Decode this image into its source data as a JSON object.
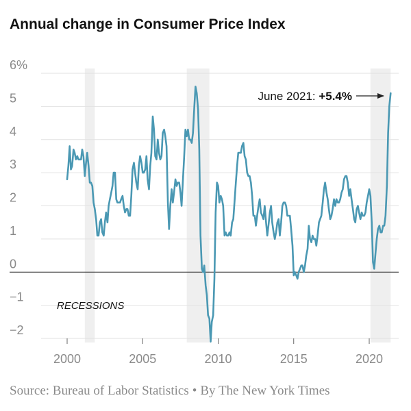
{
  "chart_data": {
    "type": "line",
    "title": "Annual change in Consumer Price Index",
    "source": "Source: Bureau of Labor Statistics",
    "byline": "By The New York Times",
    "separator": "•",
    "colors": {
      "line": "#4a98b3",
      "recession": "#efefef",
      "grid": "#e2e2e2",
      "zero_line": "#222222",
      "tick_text": "#8a8a8a"
    },
    "xlim": [
      1998.2,
      2022.0
    ],
    "ylim": [
      -2.2,
      6.2
    ],
    "x_ticks": [
      {
        "value": 2000,
        "label": "2000"
      },
      {
        "value": 2005,
        "label": "2005"
      },
      {
        "value": 2010,
        "label": "2010"
      },
      {
        "value": 2015,
        "label": "2015"
      },
      {
        "value": 2020,
        "label": "2020"
      }
    ],
    "y_ticks": [
      {
        "value": 6,
        "label": "6%"
      },
      {
        "value": 5,
        "label": "5"
      },
      {
        "value": 4,
        "label": "4"
      },
      {
        "value": 3,
        "label": "3"
      },
      {
        "value": 2,
        "label": "2"
      },
      {
        "value": 1,
        "label": "1"
      },
      {
        "value": 0,
        "label": "0"
      },
      {
        "value": -1,
        "label": "−1"
      },
      {
        "value": -2,
        "label": "−2"
      }
    ],
    "recessions": [
      {
        "start": 2001.17,
        "end": 2001.83
      },
      {
        "start": 2007.92,
        "end": 2009.42
      },
      {
        "start": 2020.08,
        "end": 2021.42
      }
    ],
    "recessions_label": "RECESSIONS",
    "annotation": {
      "text": "June 2021: ",
      "value_text": "+5.4%",
      "x": 2021.42,
      "y": 5.4
    },
    "series": [
      {
        "x": [
          2000.0,
          2000.08,
          2000.17,
          2000.25,
          2000.33,
          2000.42,
          2000.5,
          2000.58,
          2000.67,
          2000.75,
          2000.83,
          2000.92,
          2001.0,
          2001.08,
          2001.17,
          2001.25,
          2001.33,
          2001.42,
          2001.5,
          2001.58,
          2001.67,
          2001.75,
          2001.83,
          2001.92,
          2002.0,
          2002.08,
          2002.17,
          2002.25,
          2002.33,
          2002.42,
          2002.5,
          2002.58,
          2002.67,
          2002.75,
          2002.83,
          2002.92,
          2003.0,
          2003.08,
          2003.17,
          2003.25,
          2003.33,
          2003.42,
          2003.5,
          2003.58,
          2003.67,
          2003.75,
          2003.83,
          2003.92,
          2004.0,
          2004.08,
          2004.17,
          2004.25,
          2004.33,
          2004.42,
          2004.5,
          2004.58,
          2004.67,
          2004.75,
          2004.83,
          2004.92,
          2005.0,
          2005.08,
          2005.17,
          2005.25,
          2005.33,
          2005.42,
          2005.5,
          2005.58,
          2005.67,
          2005.75,
          2005.83,
          2005.92,
          2006.0,
          2006.08,
          2006.17,
          2006.25,
          2006.33,
          2006.42,
          2006.5,
          2006.58,
          2006.67,
          2006.75,
          2006.83,
          2006.92,
          2007.0,
          2007.08,
          2007.17,
          2007.25,
          2007.33,
          2007.42,
          2007.5,
          2007.58,
          2007.67,
          2007.75,
          2007.83,
          2007.92,
          2008.0,
          2008.08,
          2008.17,
          2008.25,
          2008.33,
          2008.42,
          2008.5,
          2008.58,
          2008.67,
          2008.75,
          2008.83,
          2008.92,
          2009.0,
          2009.08,
          2009.17,
          2009.25,
          2009.33,
          2009.42,
          2009.5,
          2009.58,
          2009.67,
          2009.75,
          2009.83,
          2009.92,
          2010.0,
          2010.08,
          2010.17,
          2010.25,
          2010.33,
          2010.42,
          2010.5,
          2010.58,
          2010.67,
          2010.75,
          2010.83,
          2010.92,
          2011.0,
          2011.08,
          2011.17,
          2011.25,
          2011.33,
          2011.42,
          2011.5,
          2011.58,
          2011.67,
          2011.75,
          2011.83,
          2011.92,
          2012.0,
          2012.08,
          2012.17,
          2012.25,
          2012.33,
          2012.42,
          2012.5,
          2012.58,
          2012.67,
          2012.75,
          2012.83,
          2012.92,
          2013.0,
          2013.08,
          2013.17,
          2013.25,
          2013.33,
          2013.42,
          2013.5,
          2013.58,
          2013.67,
          2013.75,
          2013.83,
          2013.92,
          2014.0,
          2014.08,
          2014.17,
          2014.25,
          2014.33,
          2014.42,
          2014.5,
          2014.58,
          2014.67,
          2014.75,
          2014.83,
          2014.92,
          2015.0,
          2015.08,
          2015.17,
          2015.25,
          2015.33,
          2015.42,
          2015.5,
          2015.58,
          2015.67,
          2015.75,
          2015.83,
          2015.92,
          2016.0,
          2016.08,
          2016.17,
          2016.25,
          2016.33,
          2016.42,
          2016.5,
          2016.58,
          2016.67,
          2016.75,
          2016.83,
          2016.92,
          2017.0,
          2017.08,
          2017.17,
          2017.25,
          2017.33,
          2017.42,
          2017.5,
          2017.58,
          2017.67,
          2017.75,
          2017.83,
          2017.92,
          2018.0,
          2018.08,
          2018.17,
          2018.25,
          2018.33,
          2018.42,
          2018.5,
          2018.58,
          2018.67,
          2018.75,
          2018.83,
          2018.92,
          2019.0,
          2019.08,
          2019.17,
          2019.25,
          2019.33,
          2019.42,
          2019.5,
          2019.58,
          2019.67,
          2019.75,
          2019.83,
          2019.92,
          2020.0,
          2020.08,
          2020.17,
          2020.25,
          2020.33,
          2020.42,
          2020.5,
          2020.58,
          2020.67,
          2020.75,
          2020.83,
          2020.92,
          2021.0,
          2021.08,
          2021.17,
          2021.25,
          2021.33,
          2021.42
        ],
        "y": [
          2.8,
          3.2,
          3.8,
          3.1,
          3.2,
          3.7,
          3.6,
          3.4,
          3.5,
          3.4,
          3.4,
          3.4,
          3.7,
          3.5,
          2.9,
          3.3,
          3.6,
          3.2,
          2.7,
          2.7,
          2.6,
          2.1,
          1.9,
          1.6,
          1.1,
          1.1,
          1.5,
          1.6,
          1.2,
          1.1,
          1.5,
          1.8,
          1.5,
          2.0,
          2.2,
          2.4,
          2.6,
          3.0,
          3.0,
          2.2,
          2.1,
          2.1,
          2.1,
          2.2,
          2.3,
          2.0,
          1.8,
          1.9,
          1.9,
          1.7,
          1.7,
          2.3,
          3.1,
          3.3,
          3.0,
          2.7,
          2.5,
          3.2,
          3.5,
          3.3,
          3.0,
          3.0,
          3.1,
          3.5,
          2.8,
          2.5,
          3.2,
          3.6,
          4.7,
          4.3,
          3.5,
          3.4,
          4.0,
          3.6,
          3.4,
          3.5,
          4.2,
          4.3,
          4.1,
          3.8,
          2.1,
          1.3,
          2.0,
          2.5,
          2.1,
          2.4,
          2.8,
          2.6,
          2.7,
          2.7,
          2.4,
          2.0,
          2.8,
          3.5,
          4.3,
          4.1,
          4.3,
          4.0,
          4.0,
          3.9,
          4.2,
          5.0,
          5.6,
          5.4,
          4.9,
          3.7,
          1.1,
          0.1,
          0.0,
          0.2,
          -0.4,
          -0.7,
          -1.3,
          -1.4,
          -2.1,
          -1.5,
          -1.3,
          -0.2,
          1.8,
          2.7,
          2.6,
          2.1,
          2.3,
          2.2,
          2.0,
          1.1,
          1.2,
          1.1,
          1.1,
          1.2,
          1.1,
          1.5,
          1.6,
          2.1,
          2.7,
          3.2,
          3.6,
          3.6,
          3.6,
          3.8,
          3.9,
          3.5,
          3.4,
          3.0,
          2.9,
          2.9,
          2.7,
          2.3,
          1.7,
          1.7,
          1.4,
          1.7,
          2.0,
          2.2,
          1.8,
          1.7,
          1.6,
          2.0,
          1.5,
          1.1,
          1.4,
          1.8,
          2.0,
          1.5,
          1.2,
          1.0,
          1.2,
          1.5,
          1.6,
          1.1,
          1.5,
          2.0,
          2.1,
          2.1,
          2.0,
          1.7,
          1.7,
          1.7,
          1.3,
          0.8,
          -0.1,
          0.0,
          -0.1,
          -0.2,
          0.0,
          0.1,
          0.2,
          0.2,
          0.0,
          0.2,
          0.5,
          0.7,
          1.4,
          1.0,
          0.9,
          1.1,
          1.0,
          1.0,
          0.8,
          1.1,
          1.5,
          1.6,
          1.7,
          2.1,
          2.5,
          2.7,
          2.4,
          2.2,
          1.9,
          1.6,
          1.7,
          1.9,
          2.2,
          2.0,
          2.2,
          2.1,
          2.1,
          2.2,
          2.4,
          2.5,
          2.8,
          2.9,
          2.9,
          2.7,
          2.3,
          2.5,
          2.2,
          1.9,
          1.6,
          1.5,
          1.9,
          2.0,
          1.8,
          1.6,
          1.8,
          1.7,
          1.7,
          1.8,
          2.1,
          2.3,
          2.5,
          2.3,
          1.5,
          0.3,
          0.1,
          0.6,
          1.0,
          1.3,
          1.4,
          1.2,
          1.2,
          1.4,
          1.4,
          1.7,
          2.6,
          4.2,
          5.0,
          5.4
        ]
      }
    ]
  }
}
